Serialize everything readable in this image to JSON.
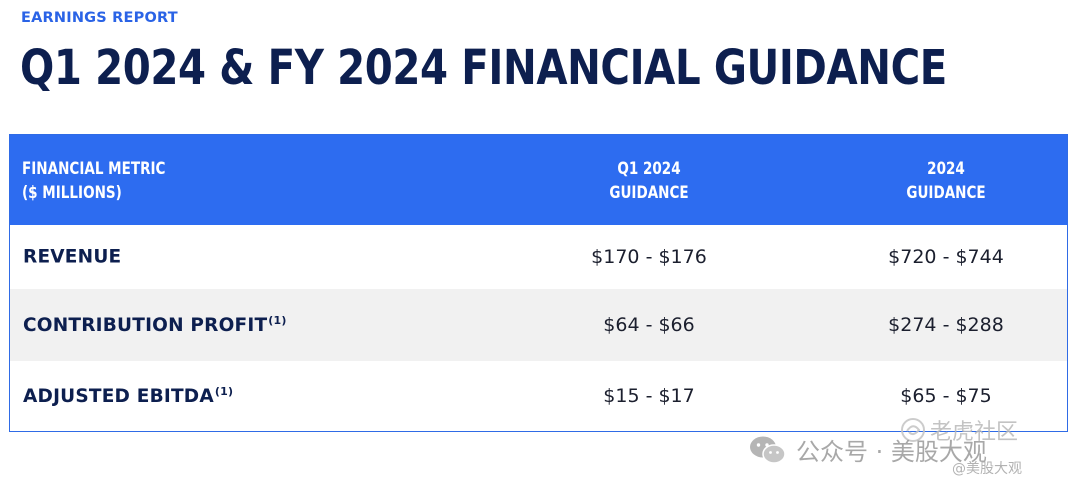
{
  "header": {
    "eyebrow": "EARNINGS REPORT",
    "title": "Q1 2024 & FY 2024 FINANCIAL GUIDANCE"
  },
  "table": {
    "columns": {
      "metric": [
        "FINANCIAL METRIC",
        "($ MILLIONS)"
      ],
      "q1": [
        "Q1 2024",
        "GUIDANCE"
      ],
      "fy": [
        "2024",
        "GUIDANCE"
      ]
    },
    "rows": [
      {
        "label": "REVENUE",
        "footnote": "",
        "q1": "$170 - $176",
        "fy": "$720 - $744"
      },
      {
        "label": "CONTRIBUTION PROFIT",
        "footnote": "(1)",
        "q1": "$64 - $66",
        "fy": "$274 - $288"
      },
      {
        "label": "ADJUSTED EBITDA",
        "footnote": "(1)",
        "q1": "$15 - $17",
        "fy": "$65 - $75"
      }
    ]
  },
  "watermarks": {
    "wechat_text": "公众号 · 美股大观",
    "community_text": "老虎社区",
    "handle_text": "@美股大观",
    "wechat_icon": "wechat-icon",
    "community_icon": "tiger-swirl-icon"
  },
  "colors": {
    "accent": "#2d6cf0",
    "title": "#0d1f4f",
    "row_alt": "#f1f1f1"
  }
}
